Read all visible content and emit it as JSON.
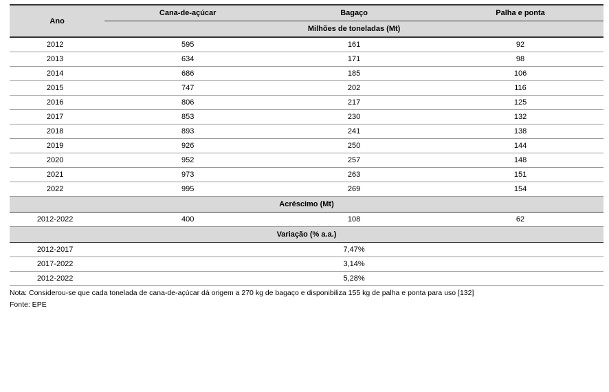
{
  "header": {
    "year_label": "Ano",
    "columns": [
      "Cana-de-açúcar",
      "Bagaço",
      "Palha e ponta"
    ],
    "subheading": "Milhões de toneladas (Mt)"
  },
  "rows": [
    {
      "year": "2012",
      "c": [
        "595",
        "161",
        "92"
      ]
    },
    {
      "year": "2013",
      "c": [
        "634",
        "171",
        "98"
      ]
    },
    {
      "year": "2014",
      "c": [
        "686",
        "185",
        "106"
      ]
    },
    {
      "year": "2015",
      "c": [
        "747",
        "202",
        "116"
      ]
    },
    {
      "year": "2016",
      "c": [
        "806",
        "217",
        "125"
      ]
    },
    {
      "year": "2017",
      "c": [
        "853",
        "230",
        "132"
      ]
    },
    {
      "year": "2018",
      "c": [
        "893",
        "241",
        "138"
      ]
    },
    {
      "year": "2019",
      "c": [
        "926",
        "250",
        "144"
      ]
    },
    {
      "year": "2020",
      "c": [
        "952",
        "257",
        "148"
      ]
    },
    {
      "year": "2021",
      "c": [
        "973",
        "263",
        "151"
      ]
    },
    {
      "year": "2022",
      "c": [
        "995",
        "269",
        "154"
      ]
    }
  ],
  "section_increase": {
    "heading": "Acréscimo (Mt)",
    "row": {
      "period": "2012-2022",
      "c": [
        "400",
        "108",
        "62"
      ]
    }
  },
  "section_variation": {
    "heading": "Variação (% a.a.)",
    "rows": [
      {
        "period": "2012-2017",
        "value": "7,47%"
      },
      {
        "period": "2017-2022",
        "value": "3,14%"
      },
      {
        "period": "2012-2022",
        "value": "5,28%"
      }
    ]
  },
  "footnotes": {
    "note": "Nota:  Considerou-se que cada tonelada de cana-de-açúcar dá origem a 270 kg de bagaço e disponibiliza 155 kg de palha e ponta para uso [132]",
    "source": "Fonte: EPE"
  },
  "style": {
    "bg_header": "#d9d9d9",
    "row_border": "#999999",
    "strong_border": "#333333",
    "font_family": "Verdana, Arial, sans-serif",
    "font_size_body": 11,
    "font_size_notes": 10.5
  }
}
